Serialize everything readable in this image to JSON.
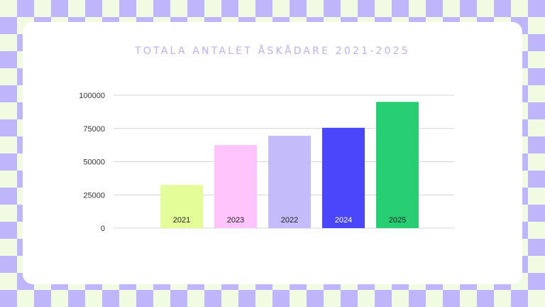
{
  "chart_data": {
    "type": "bar",
    "title": "TOTALA ANTALET ÅSKÅDARE 2021-2025",
    "xlabel": "",
    "ylabel": "",
    "ylim": [
      0,
      100000
    ],
    "yticks": [
      0,
      25000,
      50000,
      75000,
      100000
    ],
    "grid": true,
    "categories": [
      "2021",
      "2023",
      "2022",
      "2024",
      "2025"
    ],
    "values": [
      32500,
      62500,
      69500,
      75500,
      95000
    ],
    "colors": [
      "#e3fd99",
      "#ffc4fb",
      "#c4bbfb",
      "#4a46fb",
      "#26cf72"
    ],
    "label_colors": [
      "#222222",
      "#222222",
      "#222222",
      "#ffffff",
      "#222222"
    ]
  }
}
